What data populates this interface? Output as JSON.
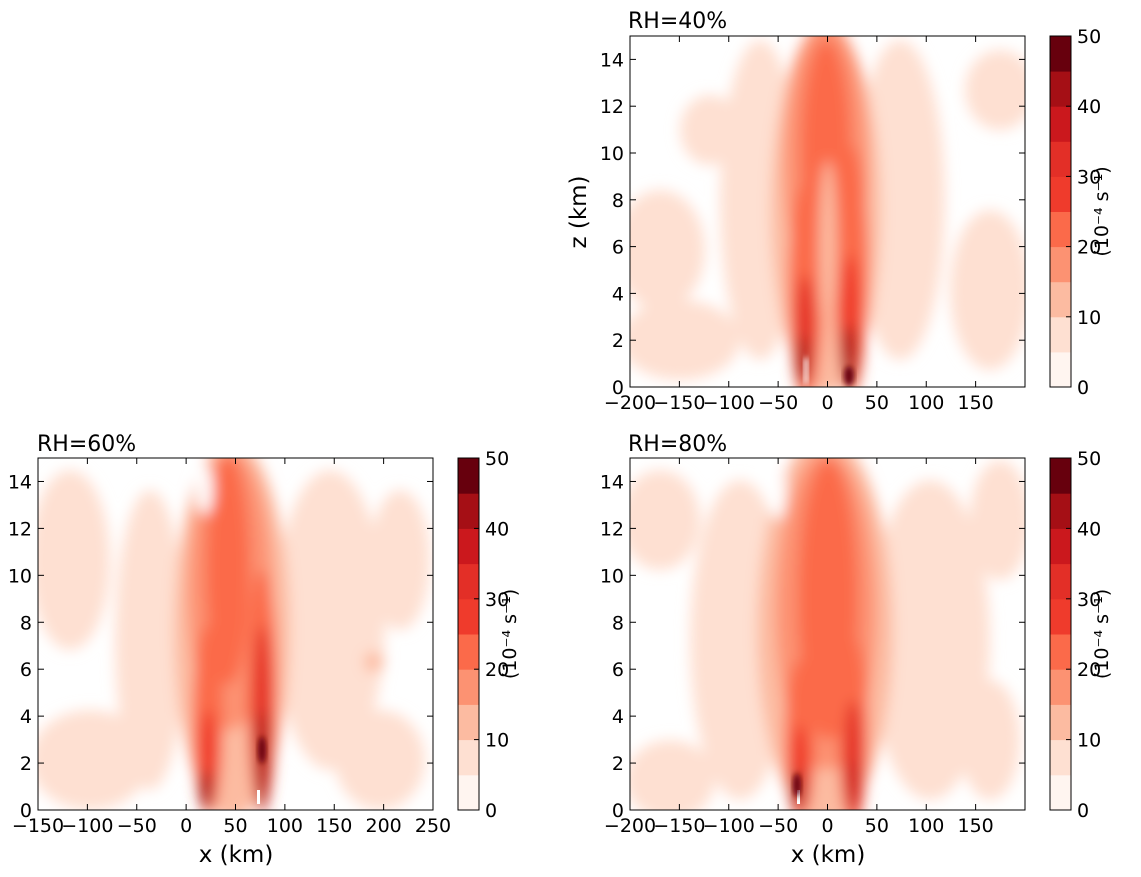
{
  "chart_data": [
    {
      "type": "heatmap",
      "title": "RH=40%",
      "xlabel": "",
      "ylabel": "z (km)",
      "xlim": [
        -200,
        200
      ],
      "ylim": [
        0,
        15
      ],
      "xticks": [
        "−200",
        "−150",
        "−100",
        "−50",
        "0",
        "50",
        "100",
        "150"
      ],
      "yticks": [
        "0",
        "2",
        "4",
        "6",
        "8",
        "10",
        "12",
        "14"
      ],
      "colorbar_label": "(10⁻⁴ s⁻¹)",
      "colorbar_ticks": [
        "0",
        "10",
        "20",
        "30",
        "40",
        "50"
      ],
      "features": [
        {
          "x": -22,
          "z": 1.5,
          "max": 50
        },
        {
          "x": 20,
          "z": 1.5,
          "max": 50
        }
      ]
    },
    {
      "type": "heatmap",
      "title": "RH=60%",
      "xlabel": "x (km)",
      "ylabel": "",
      "xlim": [
        -150,
        250
      ],
      "ylim": [
        0,
        15
      ],
      "xticks": [
        "−150",
        "−100",
        "−50",
        "0",
        "50",
        "100",
        "150",
        "200",
        "250"
      ],
      "yticks": [
        "0",
        "2",
        "4",
        "6",
        "8",
        "10",
        "12",
        "14"
      ],
      "colorbar_label": "(10⁻⁴ s⁻¹)",
      "colorbar_ticks": [
        "0",
        "10",
        "20",
        "30",
        "40",
        "50"
      ],
      "features": [
        {
          "x": 23,
          "z": 1.0,
          "max": 50
        },
        {
          "x": 75,
          "z": 3.0,
          "max": 50
        }
      ]
    },
    {
      "type": "heatmap",
      "title": "RH=80%",
      "xlabel": "x (km)",
      "ylabel": "",
      "xlim": [
        -200,
        200
      ],
      "ylim": [
        0,
        15
      ],
      "xticks": [
        "−200",
        "−150",
        "−100",
        "−50",
        "0",
        "50",
        "100",
        "150"
      ],
      "yticks": [
        "0",
        "2",
        "4",
        "6",
        "8",
        "10",
        "12",
        "14"
      ],
      "colorbar_label": "(10⁻⁴ s⁻¹)",
      "colorbar_ticks": [
        "0",
        "10",
        "20",
        "30",
        "40",
        "50"
      ],
      "features": [
        {
          "x": -32,
          "z": 1.0,
          "max": 50
        },
        {
          "x": 23,
          "z": 1.5,
          "max": 45
        }
      ]
    }
  ],
  "colors": {
    "levels": [
      "#fff5f0",
      "#fee0d2",
      "#fcbba1",
      "#fc9272",
      "#fb6a4a",
      "#ef3b2c",
      "#e32f27",
      "#cb181d",
      "#a50f15",
      "#67000d"
    ]
  }
}
